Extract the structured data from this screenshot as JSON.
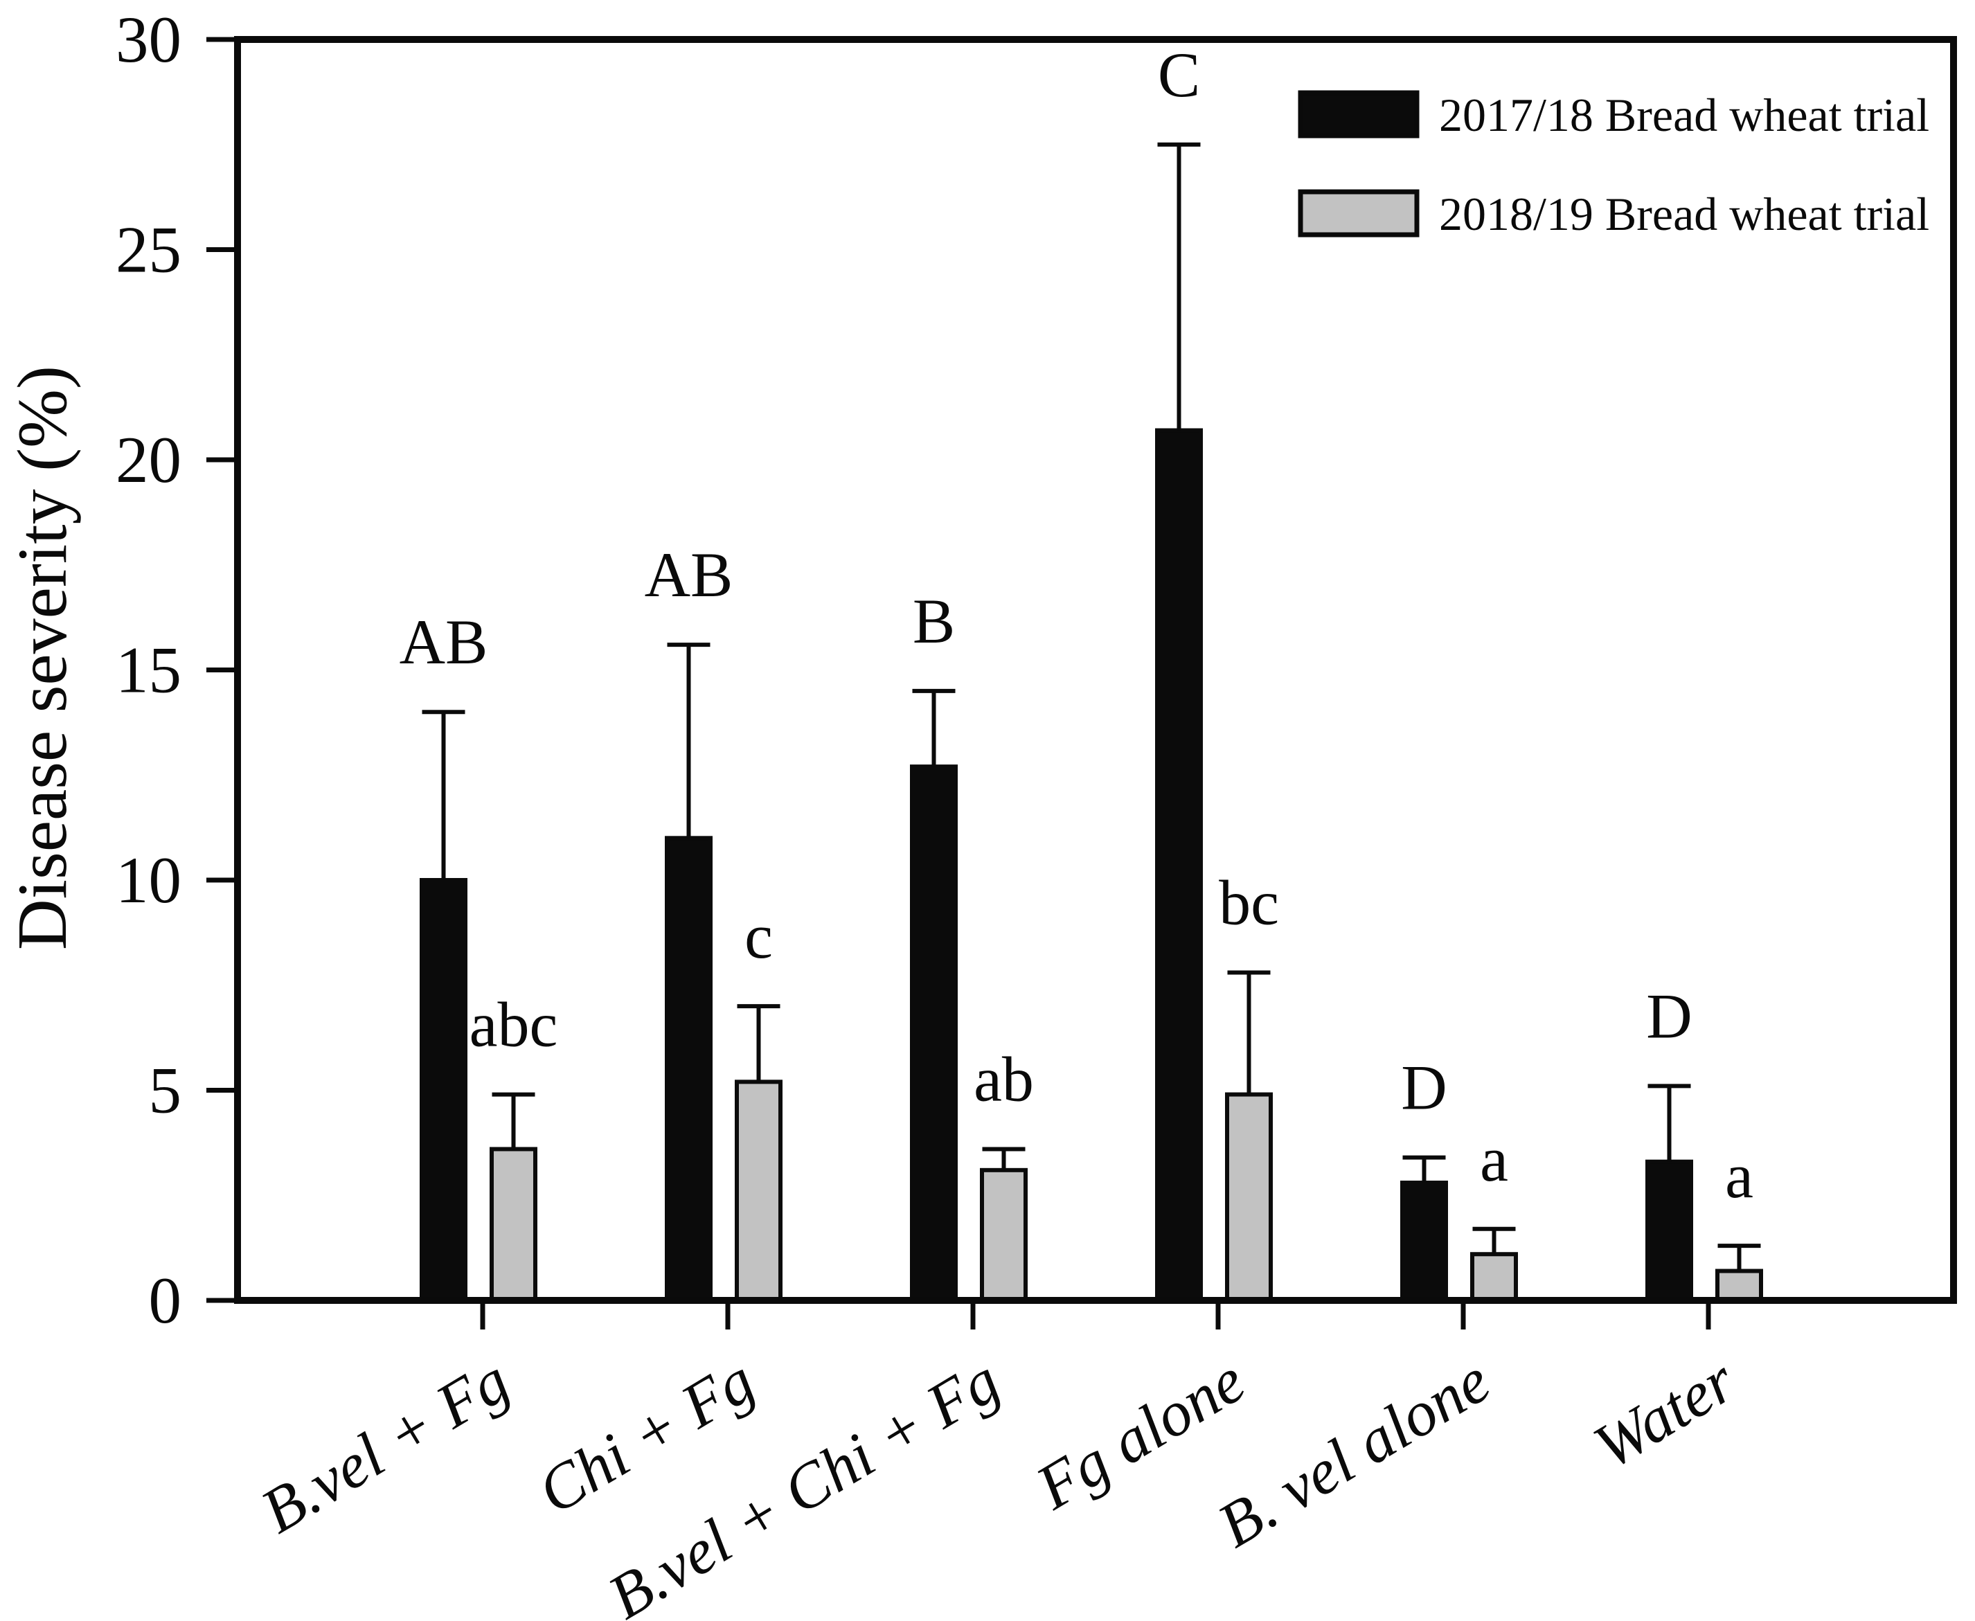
{
  "figure": {
    "background": "#ffffff",
    "axis_color": "#0a0a0a"
  },
  "chart_data": {
    "type": "bar",
    "title": "",
    "xlabel": "",
    "ylabel": "Disease severity (%)",
    "ylim": [
      0,
      30
    ],
    "yticks": [
      0,
      5,
      10,
      15,
      20,
      25,
      30
    ],
    "grid": false,
    "legend_position": "upper right",
    "categories": [
      "B.vel + Fg",
      "Chi + Fg",
      "B.vel + Chi + Fg",
      "Fg alone",
      "B. vel alone",
      "Water"
    ],
    "series": [
      {
        "name": "2017/18 Bread wheat trial",
        "color": "#0b0b0b",
        "border_color": "#0b0b0b",
        "values": [
          10.0,
          11.0,
          12.7,
          20.7,
          2.8,
          3.3
        ],
        "errors": [
          4.0,
          4.6,
          1.8,
          6.8,
          0.6,
          1.8
        ],
        "letters": [
          "AB",
          "AB",
          "B",
          "C",
          "D",
          "D"
        ]
      },
      {
        "name": "2018/19 Bread wheat trial",
        "color": "#c2c2c2",
        "border_color": "#0b0b0b",
        "values": [
          3.6,
          5.2,
          3.1,
          4.9,
          1.1,
          0.7
        ],
        "errors": [
          1.3,
          1.8,
          0.5,
          2.9,
          0.6,
          0.6
        ],
        "letters": [
          "abc",
          "c",
          "ab",
          "bc",
          "a",
          "a"
        ]
      }
    ]
  }
}
